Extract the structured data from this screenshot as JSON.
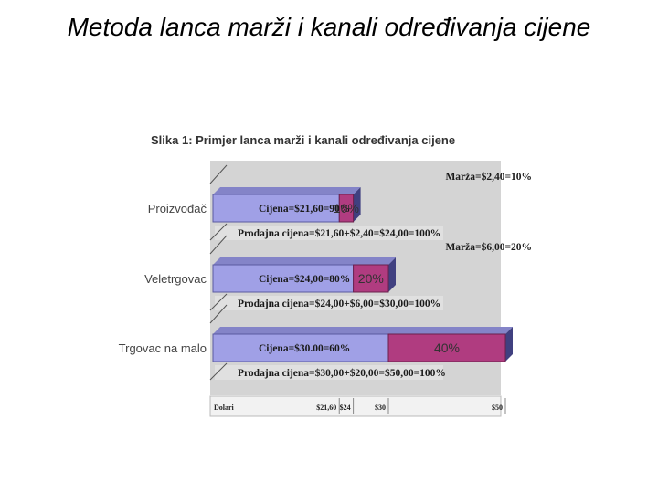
{
  "slide": {
    "title": "Metoda lanca marži i kanali određivanja cijene"
  },
  "figure": {
    "caption": "Slika 1: Primjer lanca marži i kanali određivanja cijene"
  },
  "colors": {
    "cost": "#a0a0e6",
    "margin": "#b03c80",
    "panel": "#d4d4d4",
    "shadow": "#404080"
  },
  "chart_data": {
    "type": "bar",
    "stacked": true,
    "orientation": "horizontal",
    "x_unit": "Dolari",
    "xlim": [
      0,
      50
    ],
    "x_ticks": [
      {
        "value": 21.6,
        "label": "$21,60"
      },
      {
        "value": 24,
        "label": "$24"
      },
      {
        "value": 30,
        "label": "$30"
      },
      {
        "value": 50,
        "label": "$50"
      }
    ],
    "categories": [
      "Proizvođač",
      "Veletrgovac",
      "Trgovac na malo"
    ],
    "rows": [
      {
        "name": "Proizvođač",
        "cost": 21.6,
        "margin": 2.4,
        "cost_label": "Cijena=$21,60=90%",
        "margin_pct": "10%",
        "margin_note": "Marža=$2,40=10%",
        "sale_label": "Prodajna cijena=$21,60+$2,40=$24,00=100%"
      },
      {
        "name": "Veletrgovac",
        "cost": 24,
        "margin": 6,
        "cost_label": "Cijena=$24,00=80%",
        "margin_pct": "20%",
        "margin_note": "Marža=$6,00=20%",
        "sale_label": "Prodajna cijena=$24,00+$6,00=$30,00=100%"
      },
      {
        "name": "Trgovac na malo",
        "cost": 30,
        "margin": 20,
        "cost_label": "Cijena=$30.00=60%",
        "margin_pct": "40%",
        "margin_note": "",
        "sale_label": "Prodajna cijena=$30,00+$20,00=$50,00=100%"
      }
    ]
  }
}
